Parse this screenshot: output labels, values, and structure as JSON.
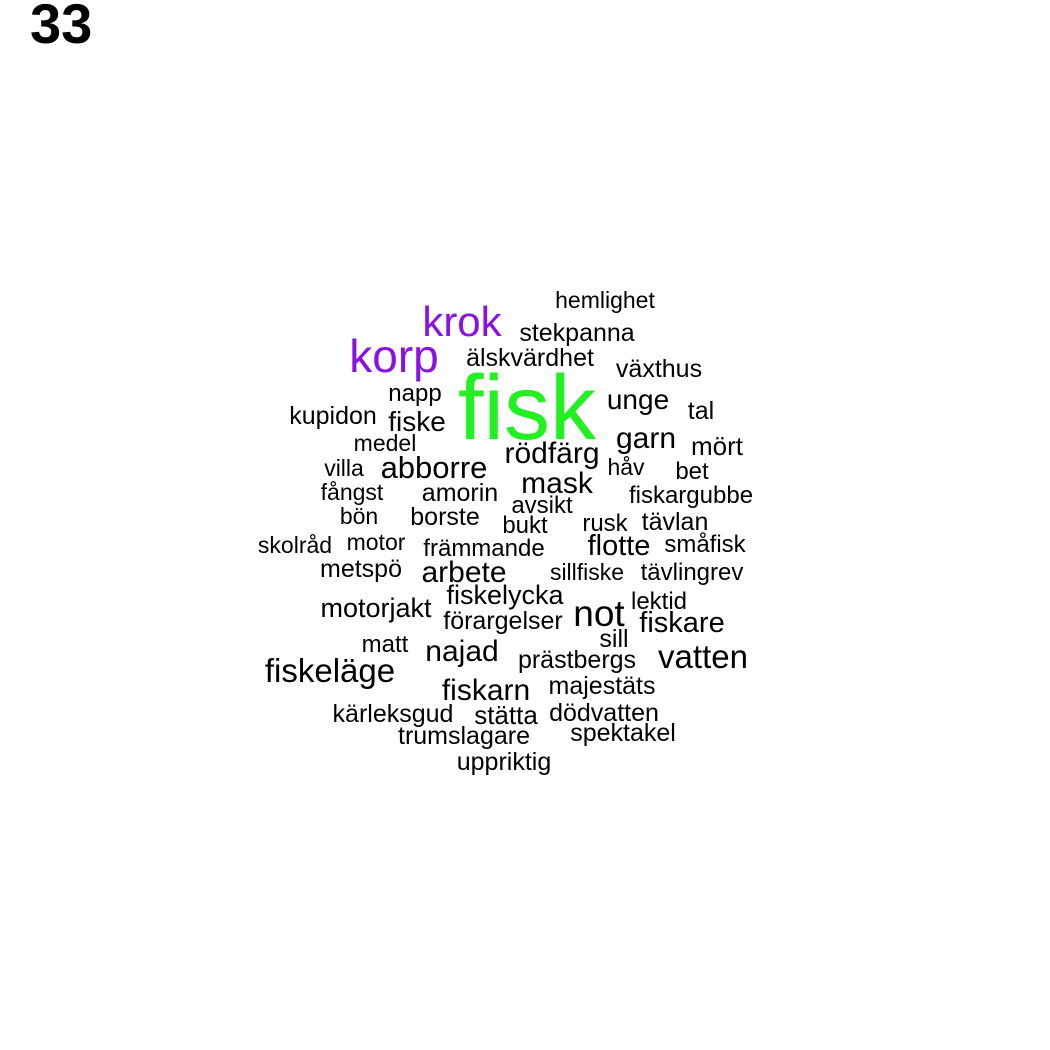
{
  "panel_label": "33",
  "colors": {
    "primary": "#22f022",
    "secondary": "#8b10e6",
    "default": "#000000"
  },
  "words": [
    {
      "text": "fisk",
      "level": "primary"
    },
    {
      "text": "korp",
      "level": "secondary"
    },
    {
      "text": "krok",
      "level": "secondary"
    },
    {
      "text": "hemlighet",
      "level": "default"
    },
    {
      "text": "stekpanna",
      "level": "default"
    },
    {
      "text": "älskvärdhet",
      "level": "default"
    },
    {
      "text": "växthus",
      "level": "default"
    },
    {
      "text": "napp",
      "level": "default"
    },
    {
      "text": "unge",
      "level": "default"
    },
    {
      "text": "tal",
      "level": "default"
    },
    {
      "text": "kupidon",
      "level": "default"
    },
    {
      "text": "fiske",
      "level": "default"
    },
    {
      "text": "garn",
      "level": "default"
    },
    {
      "text": "mört",
      "level": "default"
    },
    {
      "text": "medel",
      "level": "default"
    },
    {
      "text": "rödfärg",
      "level": "default"
    },
    {
      "text": "villa",
      "level": "default"
    },
    {
      "text": "abborre",
      "level": "default"
    },
    {
      "text": "håv",
      "level": "default"
    },
    {
      "text": "bet",
      "level": "default"
    },
    {
      "text": "mask",
      "level": "default"
    },
    {
      "text": "fångst",
      "level": "default"
    },
    {
      "text": "amorin",
      "level": "default"
    },
    {
      "text": "fiskargubbe",
      "level": "default"
    },
    {
      "text": "avsikt",
      "level": "default"
    },
    {
      "text": "bön",
      "level": "default"
    },
    {
      "text": "borste",
      "level": "default"
    },
    {
      "text": "bukt",
      "level": "default"
    },
    {
      "text": "rusk",
      "level": "default"
    },
    {
      "text": "tävlan",
      "level": "default"
    },
    {
      "text": "skolråd",
      "level": "default"
    },
    {
      "text": "motor",
      "level": "default"
    },
    {
      "text": "främmande",
      "level": "default"
    },
    {
      "text": "flotte",
      "level": "default"
    },
    {
      "text": "småfisk",
      "level": "default"
    },
    {
      "text": "metspö",
      "level": "default"
    },
    {
      "text": "arbete",
      "level": "default"
    },
    {
      "text": "sillfiske",
      "level": "default"
    },
    {
      "text": "tävlingrev",
      "level": "default"
    },
    {
      "text": "fiskelycka",
      "level": "default"
    },
    {
      "text": "motorjakt",
      "level": "default"
    },
    {
      "text": "not",
      "level": "default"
    },
    {
      "text": "lektid",
      "level": "default"
    },
    {
      "text": "förargelser",
      "level": "default"
    },
    {
      "text": "fiskare",
      "level": "default"
    },
    {
      "text": "sill",
      "level": "default"
    },
    {
      "text": "matt",
      "level": "default"
    },
    {
      "text": "najad",
      "level": "default"
    },
    {
      "text": "prästbergs",
      "level": "default"
    },
    {
      "text": "vatten",
      "level": "default"
    },
    {
      "text": "fiskeläge",
      "level": "default"
    },
    {
      "text": "majestäts",
      "level": "default"
    },
    {
      "text": "fiskarn",
      "level": "default"
    },
    {
      "text": "kärleksgud",
      "level": "default"
    },
    {
      "text": "stätta",
      "level": "default"
    },
    {
      "text": "dödvatten",
      "level": "default"
    },
    {
      "text": "trumslagare",
      "level": "default"
    },
    {
      "text": "spektakel",
      "level": "default"
    },
    {
      "text": "uppriktig",
      "level": "default"
    }
  ]
}
